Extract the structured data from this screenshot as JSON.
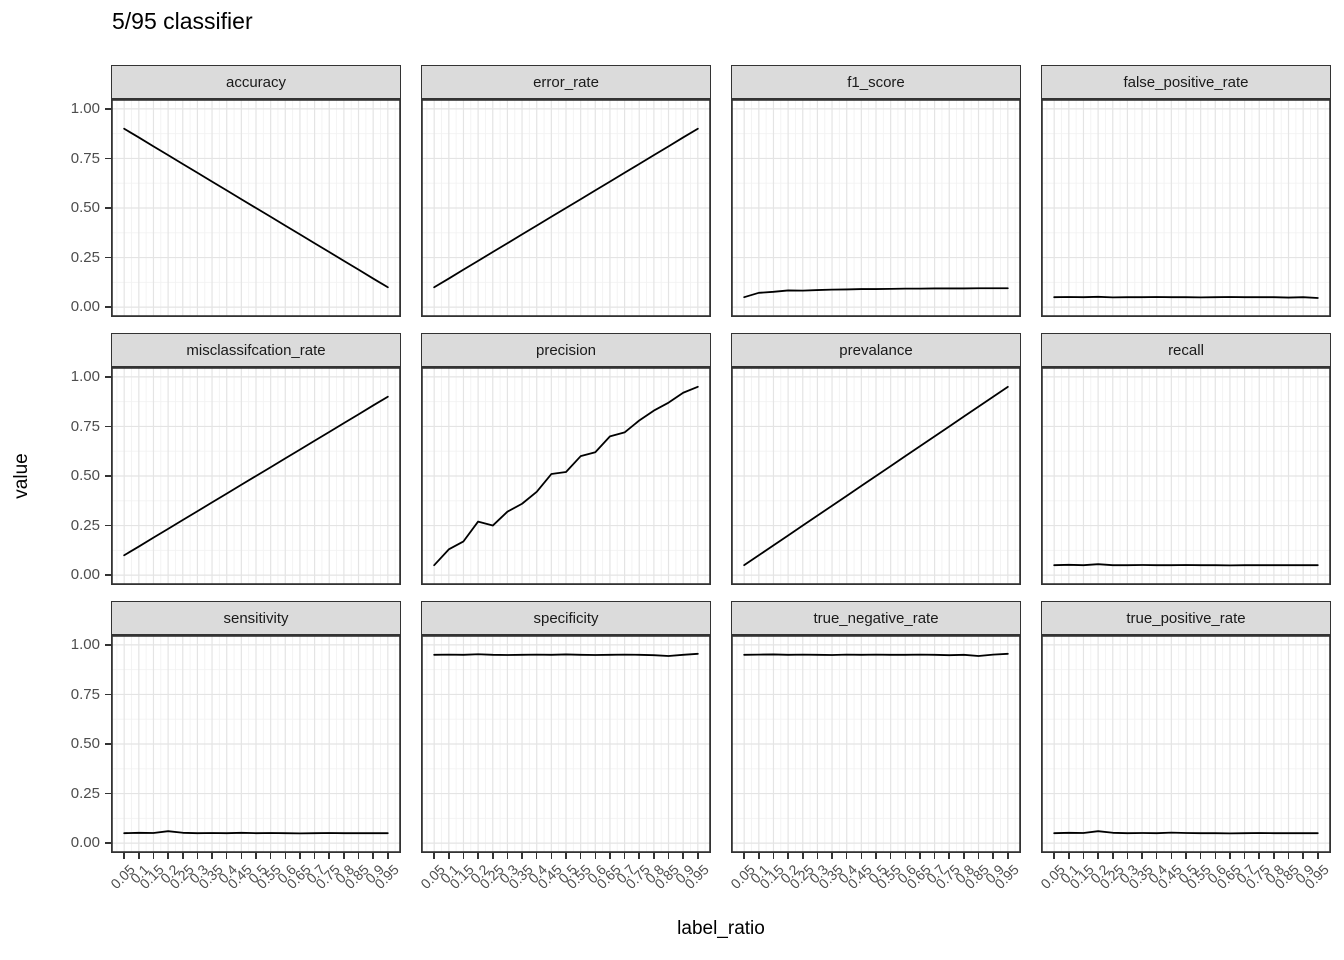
{
  "title": "5/95 classifier",
  "x_axis": {
    "title": "label_ratio",
    "tick_labels": [
      "0.05",
      "0.1",
      "0.15",
      "0.2",
      "0.25",
      "0.3",
      "0.35",
      "0.4",
      "0.45",
      "0.5",
      "0.55",
      "0.6",
      "0.65",
      "0.7",
      "0.75",
      "0.8",
      "0.85",
      "0.9",
      "0.95"
    ]
  },
  "y_axis": {
    "title": "value",
    "tick_labels": [
      "1.00",
      "0.75",
      "0.50",
      "0.25",
      "0.00"
    ],
    "tick_values": [
      1.0,
      0.75,
      0.5,
      0.25,
      0.0
    ]
  },
  "colors": {
    "line": "#000000",
    "grid_major": "#e4e4e4",
    "grid_minor": "#f2f2f2",
    "strip_bg": "#dbdbdb",
    "panel_border": "#333333",
    "tick": "#333333",
    "tick_label": "#4d4d4d",
    "background": "#ffffff"
  },
  "chart_data": {
    "type": "line",
    "faceted": true,
    "facet_layout": {
      "rows": 3,
      "cols": 4
    },
    "title": "5/95 classifier",
    "xlabel": "label_ratio",
    "ylabel": "value",
    "xlim": [
      0.005,
      0.995
    ],
    "ylim": [
      -0.05,
      1.05
    ],
    "grid": "on",
    "legend": "none",
    "x": [
      0.05,
      0.1,
      0.15,
      0.2,
      0.25,
      0.3,
      0.35,
      0.4,
      0.45,
      0.5,
      0.55,
      0.6,
      0.65,
      0.7,
      0.75,
      0.8,
      0.85,
      0.9,
      0.95
    ],
    "x_minor_gridlines": [
      0.025,
      0.075,
      0.125,
      0.175,
      0.225,
      0.275,
      0.325,
      0.375,
      0.425,
      0.475,
      0.525,
      0.575,
      0.625,
      0.675,
      0.725,
      0.775,
      0.825,
      0.875,
      0.925,
      0.975
    ],
    "y_major_gridlines": [
      0.0,
      0.25,
      0.5,
      0.75,
      1.0
    ],
    "y_minor_gridlines": [
      0.125,
      0.375,
      0.625,
      0.875
    ],
    "series": [
      {
        "name": "accuracy",
        "values": [
          0.9,
          0.856,
          0.811,
          0.767,
          0.722,
          0.678,
          0.633,
          0.589,
          0.544,
          0.5,
          0.456,
          0.411,
          0.367,
          0.322,
          0.278,
          0.233,
          0.189,
          0.144,
          0.1
        ]
      },
      {
        "name": "error_rate",
        "values": [
          0.1,
          0.144,
          0.189,
          0.233,
          0.278,
          0.322,
          0.367,
          0.411,
          0.456,
          0.5,
          0.544,
          0.589,
          0.633,
          0.678,
          0.722,
          0.767,
          0.811,
          0.856,
          0.9
        ]
      },
      {
        "name": "f1_score",
        "values": [
          0.05,
          0.072,
          0.077,
          0.084,
          0.083,
          0.086,
          0.088,
          0.089,
          0.091,
          0.091,
          0.092,
          0.093,
          0.093,
          0.094,
          0.094,
          0.094,
          0.095,
          0.095,
          0.095
        ]
      },
      {
        "name": "false_positive_rate",
        "values": [
          0.05,
          0.051,
          0.05,
          0.052,
          0.049,
          0.05,
          0.05,
          0.051,
          0.05,
          0.05,
          0.049,
          0.05,
          0.051,
          0.05,
          0.05,
          0.05,
          0.048,
          0.05,
          0.046
        ]
      },
      {
        "name": "misclassifcation_rate",
        "values": [
          0.1,
          0.144,
          0.189,
          0.233,
          0.278,
          0.322,
          0.367,
          0.411,
          0.456,
          0.5,
          0.544,
          0.589,
          0.633,
          0.678,
          0.722,
          0.767,
          0.811,
          0.856,
          0.9
        ]
      },
      {
        "name": "precision",
        "values": [
          0.05,
          0.13,
          0.17,
          0.27,
          0.25,
          0.32,
          0.36,
          0.42,
          0.51,
          0.52,
          0.6,
          0.62,
          0.7,
          0.72,
          0.78,
          0.83,
          0.87,
          0.92,
          0.95
        ]
      },
      {
        "name": "prevalance",
        "values": [
          0.05,
          0.1,
          0.15,
          0.2,
          0.25,
          0.3,
          0.35,
          0.4,
          0.45,
          0.5,
          0.55,
          0.6,
          0.65,
          0.7,
          0.75,
          0.8,
          0.85,
          0.9,
          0.95
        ]
      },
      {
        "name": "recall",
        "values": [
          0.05,
          0.052,
          0.05,
          0.055,
          0.05,
          0.05,
          0.051,
          0.05,
          0.05,
          0.051,
          0.05,
          0.05,
          0.049,
          0.05,
          0.05,
          0.05,
          0.05,
          0.05,
          0.05
        ]
      },
      {
        "name": "sensitivity",
        "values": [
          0.05,
          0.052,
          0.051,
          0.06,
          0.052,
          0.05,
          0.051,
          0.05,
          0.052,
          0.05,
          0.051,
          0.05,
          0.049,
          0.05,
          0.051,
          0.05,
          0.05,
          0.05,
          0.05
        ]
      },
      {
        "name": "specificity",
        "values": [
          0.95,
          0.951,
          0.95,
          0.953,
          0.95,
          0.949,
          0.95,
          0.951,
          0.95,
          0.952,
          0.95,
          0.949,
          0.95,
          0.951,
          0.95,
          0.948,
          0.944,
          0.95,
          0.955
        ]
      },
      {
        "name": "true_negative_rate",
        "values": [
          0.95,
          0.951,
          0.952,
          0.95,
          0.951,
          0.95,
          0.949,
          0.951,
          0.95,
          0.951,
          0.95,
          0.95,
          0.951,
          0.95,
          0.948,
          0.95,
          0.944,
          0.951,
          0.955
        ]
      },
      {
        "name": "true_positive_rate",
        "values": [
          0.05,
          0.052,
          0.051,
          0.06,
          0.052,
          0.05,
          0.051,
          0.05,
          0.053,
          0.051,
          0.05,
          0.05,
          0.049,
          0.05,
          0.051,
          0.05,
          0.05,
          0.05,
          0.05
        ]
      }
    ]
  }
}
